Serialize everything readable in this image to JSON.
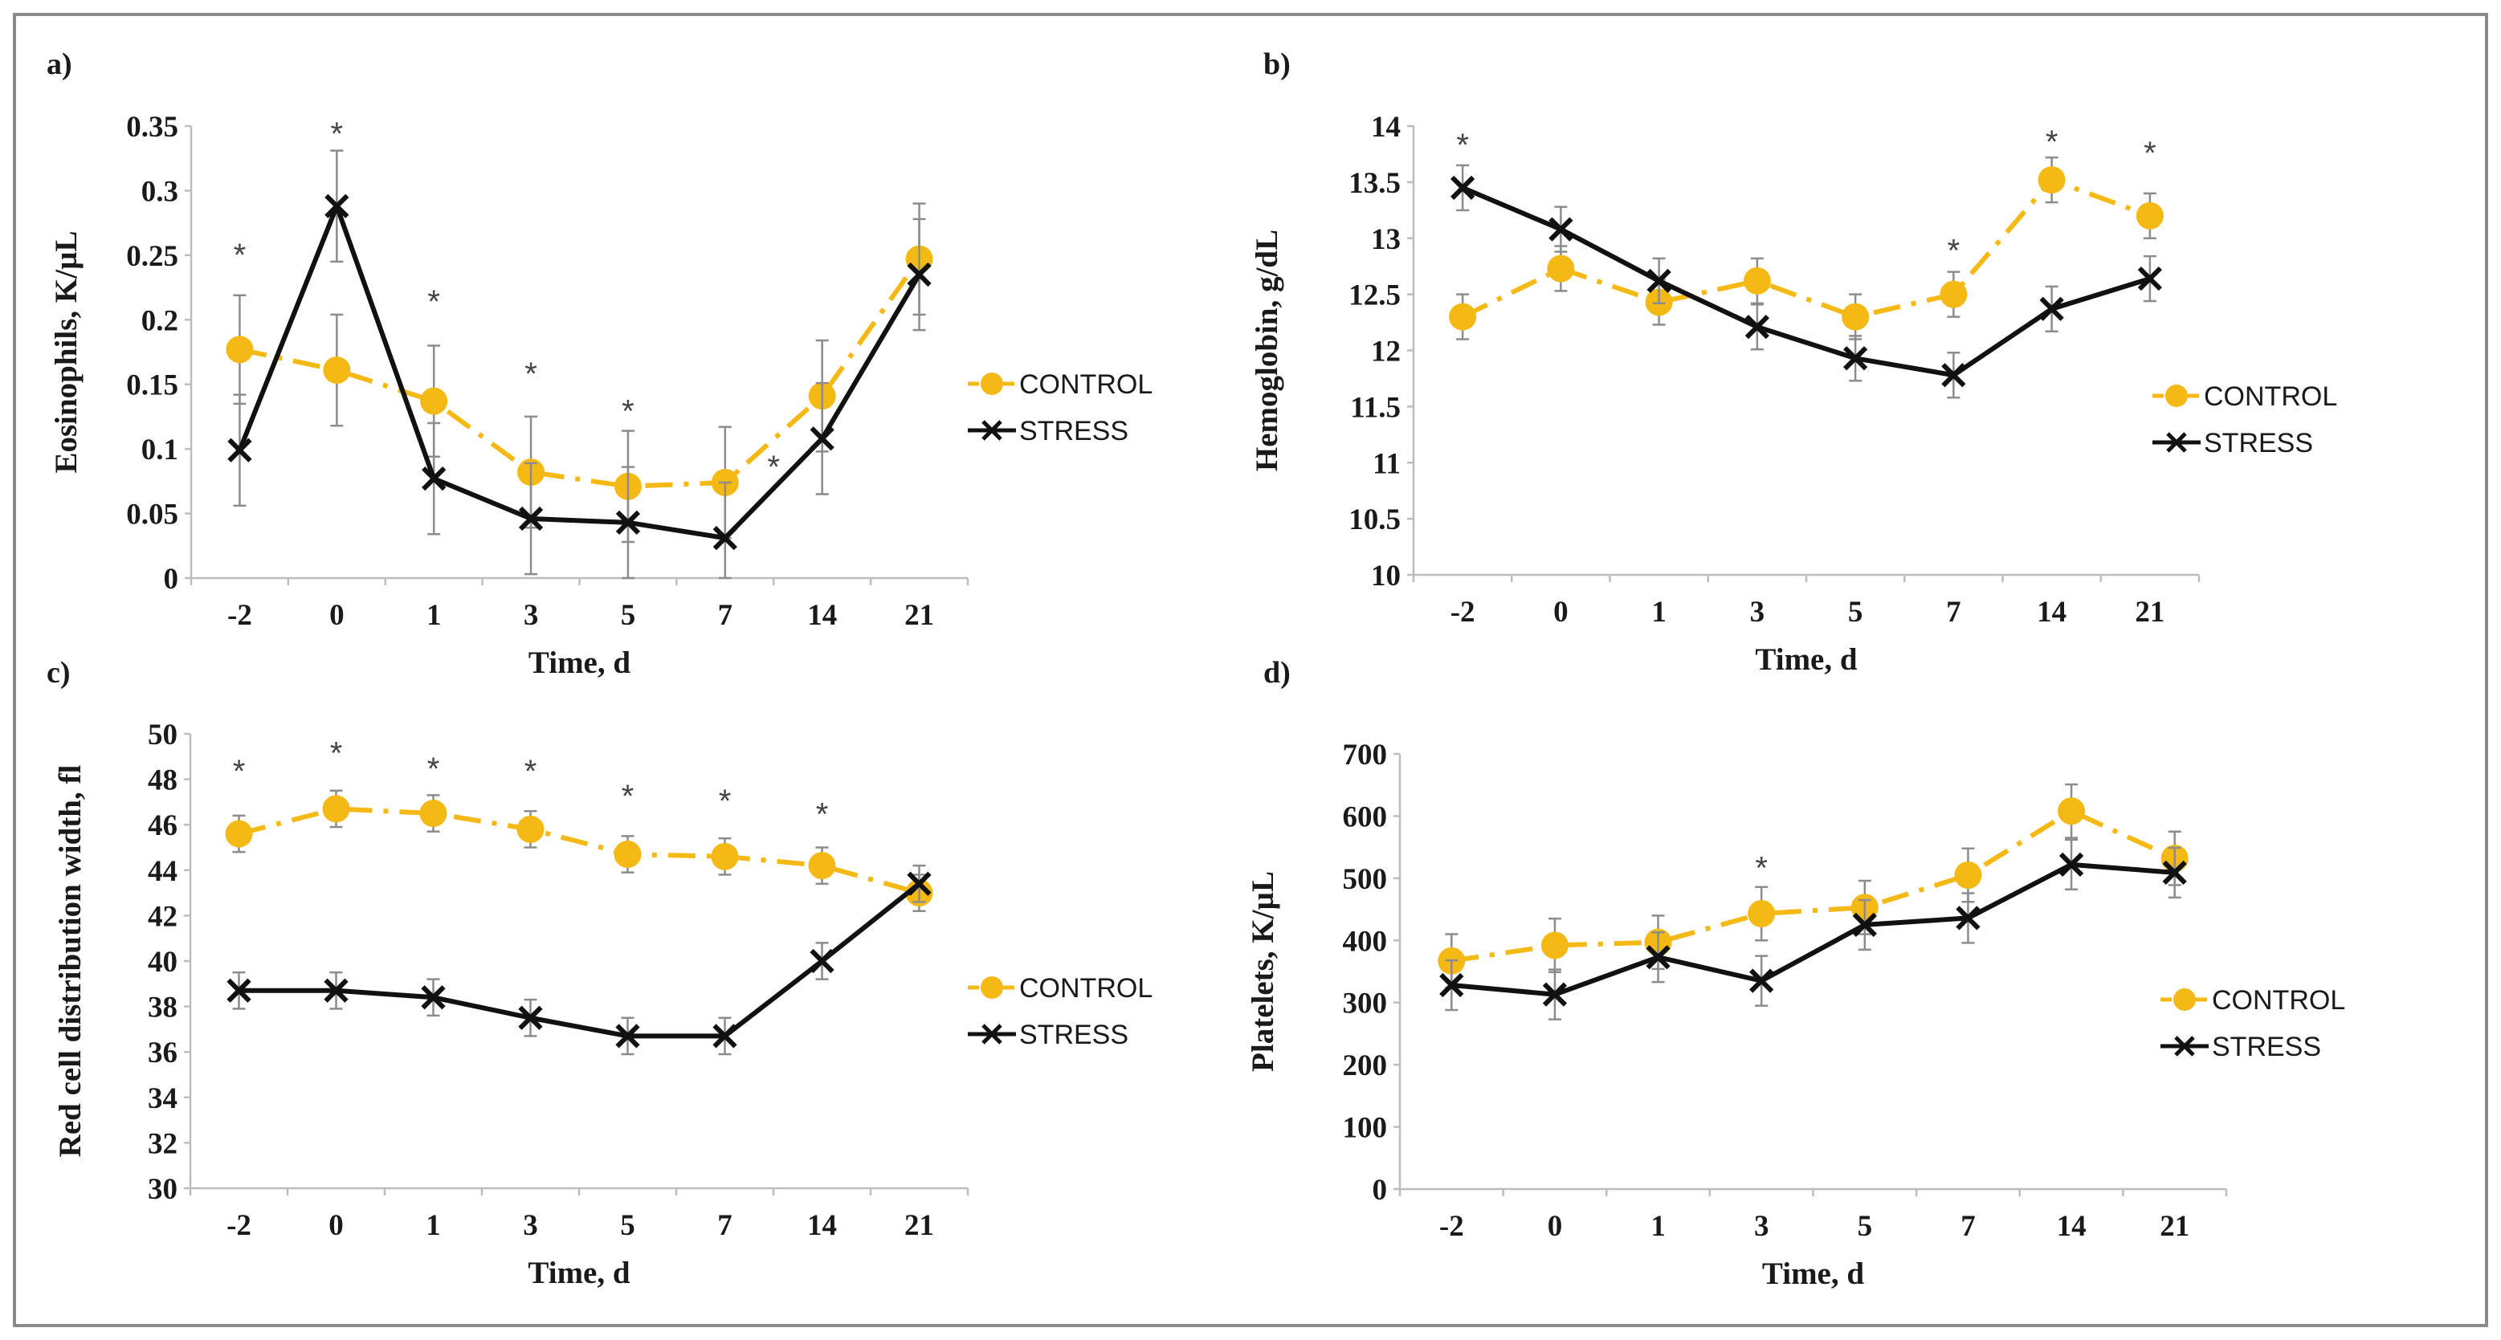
{
  "colors": {
    "control": "#f5b915",
    "stress": "#111111",
    "axis": "#bdbdbd",
    "border": "#8a8a8a"
  },
  "chart_data": [
    {
      "panel": "a)",
      "type": "line",
      "xlabel": "Time, d",
      "ylabel": "Eosinophils, K/µL",
      "categories": [
        "-2",
        "0",
        "1",
        "3",
        "5",
        "7",
        "14",
        "21"
      ],
      "ylim": [
        0,
        0.35
      ],
      "yticks": [
        0,
        0.05,
        0.1,
        0.15,
        0.2,
        0.25,
        0.3,
        0.35
      ],
      "ytick_labels": [
        "0",
        "0.05",
        "0.1",
        "0.15",
        "0.2",
        "0.25",
        "0.3",
        "0.35"
      ],
      "legend_position": "right",
      "series": [
        {
          "name": "CONTROL",
          "values": [
            0.177,
            0.161,
            0.137,
            0.082,
            0.071,
            0.074,
            0.141,
            0.247
          ],
          "errors": [
            0.042,
            0.043,
            0.043,
            0.043,
            0.043,
            0.043,
            0.043,
            0.043
          ]
        },
        {
          "name": "STRESS",
          "values": [
            0.099,
            0.288,
            0.077,
            0.046,
            0.043,
            0.031,
            0.108,
            0.235
          ],
          "errors": [
            0.043,
            0.043,
            0.043,
            0.043,
            0.043,
            0.043,
            0.043,
            0.043
          ]
        }
      ],
      "significance": [
        {
          "category": "-2",
          "label": "*",
          "y": 0.258
        },
        {
          "category": "0",
          "label": "*",
          "y": 0.352
        },
        {
          "category": "1",
          "label": "*",
          "y": 0.222
        },
        {
          "category": "3",
          "label": "*",
          "y": 0.166
        },
        {
          "category": "5",
          "label": "*",
          "y": 0.137
        },
        {
          "category": "7",
          "label": "*",
          "y": 0.094,
          "offset": 0.5
        }
      ]
    },
    {
      "panel": "b)",
      "type": "line",
      "xlabel": "Time, d",
      "ylabel": "Hemoglobin, g/dL",
      "categories": [
        "-2",
        "0",
        "1",
        "3",
        "5",
        "7",
        "14",
        "21"
      ],
      "ylim": [
        10,
        14
      ],
      "yticks": [
        10,
        10.5,
        11,
        11.5,
        12,
        12.5,
        13,
        13.5,
        14
      ],
      "ytick_labels": [
        "10",
        "10.5",
        "11",
        "11.5",
        "12",
        "12.5",
        "13",
        "13.5",
        "14"
      ],
      "legend_position": "right",
      "series": [
        {
          "name": "CONTROL",
          "values": [
            12.3,
            12.73,
            12.43,
            12.62,
            12.3,
            12.5,
            13.52,
            13.2
          ],
          "errors": [
            0.2,
            0.2,
            0.2,
            0.2,
            0.2,
            0.2,
            0.2,
            0.2
          ]
        },
        {
          "name": "STRESS",
          "values": [
            13.45,
            13.08,
            12.62,
            12.21,
            11.93,
            11.78,
            12.37,
            12.64
          ],
          "errors": [
            0.2,
            0.2,
            0.2,
            0.2,
            0.2,
            0.2,
            0.2,
            0.2
          ]
        }
      ],
      "significance": [
        {
          "category": "-2",
          "label": "*",
          "y": 13.92
        },
        {
          "category": "7",
          "label": "*",
          "y": 12.98
        },
        {
          "category": "14",
          "label": "*",
          "y": 13.95
        },
        {
          "category": "21",
          "label": "*",
          "y": 13.85
        }
      ]
    },
    {
      "panel": "c)",
      "type": "line",
      "xlabel": "Time, d",
      "ylabel": "Red cell distribution width, fl",
      "categories": [
        "-2",
        "0",
        "1",
        "3",
        "5",
        "7",
        "14",
        "21"
      ],
      "ylim": [
        30,
        50
      ],
      "yticks": [
        30,
        32,
        34,
        36,
        38,
        40,
        42,
        44,
        46,
        48,
        50
      ],
      "ytick_labels": [
        "30",
        "32",
        "34",
        "36",
        "38",
        "40",
        "42",
        "44",
        "46",
        "48",
        "50"
      ],
      "legend_position": "right",
      "series": [
        {
          "name": "CONTROL",
          "values": [
            45.6,
            46.7,
            46.5,
            45.8,
            44.7,
            44.6,
            44.2,
            43.0
          ],
          "errors": [
            0.8,
            0.8,
            0.8,
            0.8,
            0.8,
            0.8,
            0.8,
            0.8
          ]
        },
        {
          "name": "STRESS",
          "values": [
            38.7,
            38.7,
            38.4,
            37.5,
            36.7,
            36.7,
            40.0,
            43.4
          ],
          "errors": [
            0.8,
            0.8,
            0.8,
            0.8,
            0.8,
            0.8,
            0.8,
            0.8
          ]
        }
      ],
      "significance": [
        {
          "category": "-2",
          "label": "*",
          "y": 48.8
        },
        {
          "category": "0",
          "label": "*",
          "y": 49.6
        },
        {
          "category": "1",
          "label": "*",
          "y": 48.9
        },
        {
          "category": "3",
          "label": "*",
          "y": 48.8
        },
        {
          "category": "5",
          "label": "*",
          "y": 47.7
        },
        {
          "category": "7",
          "label": "*",
          "y": 47.5
        },
        {
          "category": "14",
          "label": "*",
          "y": 46.9
        }
      ]
    },
    {
      "panel": "d)",
      "type": "line",
      "xlabel": "Time, d",
      "ylabel": "Platelets, K/µL",
      "categories": [
        "-2",
        "0",
        "1",
        "3",
        "5",
        "7",
        "14",
        "21"
      ],
      "ylim": [
        0,
        700
      ],
      "yticks": [
        0,
        100,
        200,
        300,
        400,
        500,
        600,
        700
      ],
      "ytick_labels": [
        "0",
        "100",
        "200",
        "300",
        "400",
        "500",
        "600",
        "700"
      ],
      "legend_position": "right",
      "series": [
        {
          "name": "CONTROL",
          "values": [
            367,
            392,
            397,
            443,
            453,
            505,
            608,
            532
          ],
          "errors": [
            43,
            43,
            43,
            43,
            43,
            43,
            43,
            43
          ]
        },
        {
          "name": "STRESS",
          "values": [
            328,
            313,
            373,
            335,
            425,
            436,
            522,
            509
          ],
          "errors": [
            40,
            40,
            40,
            40,
            40,
            40,
            40,
            40
          ]
        }
      ],
      "significance": [
        {
          "category": "3",
          "label": "*",
          "y": 533
        }
      ]
    }
  ]
}
